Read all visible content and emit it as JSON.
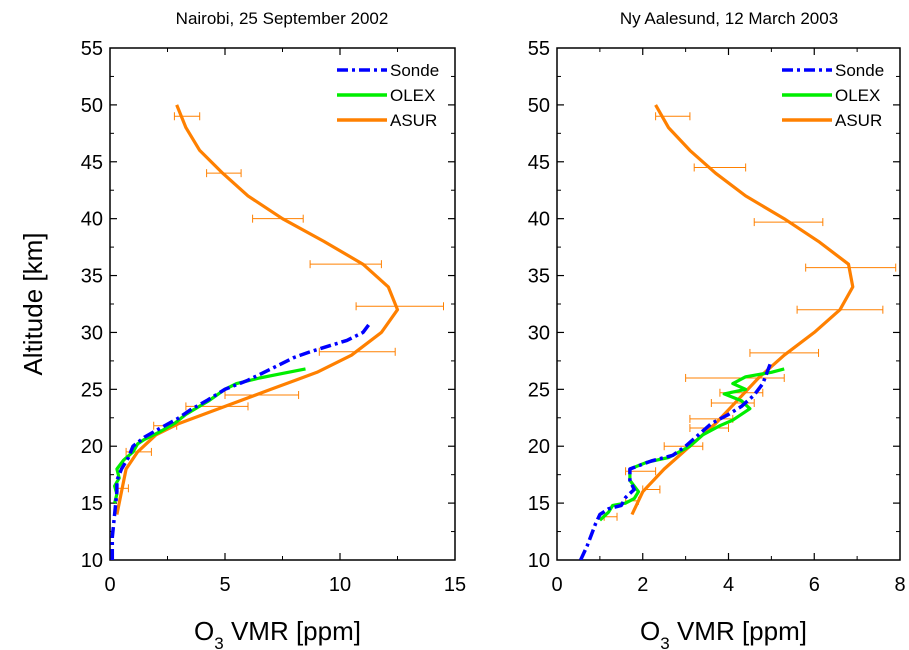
{
  "chart_data": [
    {
      "type": "line",
      "title": "Nairobi, 25 September 2002",
      "xlabel": "O",
      "xlabel_sub": "3",
      "xlabel_rest": " VMR  [ppm]",
      "ylabel": "Altitude  [km]",
      "xlim": [
        0,
        15
      ],
      "ylim": [
        10,
        55
      ],
      "xticks": [
        "0",
        "5",
        "10",
        "15"
      ],
      "yticks": [
        "10",
        "15",
        "20",
        "25",
        "30",
        "35",
        "40",
        "45",
        "50",
        "55"
      ],
      "legend_position": "top-right",
      "series": [
        {
          "name": "Sonde",
          "color": "#0000ff",
          "style": "dashdot",
          "points": [
            [
              0.1,
              10
            ],
            [
              0.1,
              12
            ],
            [
              0.2,
              14
            ],
            [
              0.3,
              16
            ],
            [
              0.3,
              17
            ],
            [
              0.5,
              18
            ],
            [
              0.8,
              19
            ],
            [
              1.0,
              20
            ],
            [
              1.5,
              20.8
            ],
            [
              2.2,
              21.6
            ],
            [
              3.0,
              22.5
            ],
            [
              3.5,
              23.2
            ],
            [
              4.2,
              24
            ],
            [
              5.0,
              25
            ],
            [
              6.0,
              25.8
            ],
            [
              7.0,
              26.8
            ],
            [
              8.0,
              27.8
            ],
            [
              8.7,
              28.3
            ],
            [
              9.5,
              28.8
            ],
            [
              10.3,
              29.3
            ],
            [
              11.0,
              30
            ],
            [
              11.3,
              30.8
            ]
          ]
        },
        {
          "name": "OLEX",
          "color": "#00ee00",
          "style": "solid",
          "points": [
            [
              0.2,
              15
            ],
            [
              0.3,
              15.8
            ],
            [
              0.2,
              16.5
            ],
            [
              0.4,
              17.2
            ],
            [
              0.3,
              18
            ],
            [
              0.6,
              18.8
            ],
            [
              1.0,
              19.5
            ],
            [
              1.2,
              20.2
            ],
            [
              1.5,
              20.6
            ],
            [
              2.2,
              21.3
            ],
            [
              2.8,
              22
            ],
            [
              3.3,
              22.8
            ],
            [
              3.8,
              23.4
            ],
            [
              4.3,
              24
            ],
            [
              5.0,
              25
            ],
            [
              5.5,
              25.5
            ],
            [
              6.5,
              26
            ],
            [
              7.5,
              26.4
            ],
            [
              8.5,
              26.8
            ]
          ]
        },
        {
          "name": "ASUR",
          "color": "#ff8000",
          "style": "solid",
          "points": [
            [
              0.3,
              14
            ],
            [
              0.5,
              16
            ],
            [
              0.7,
              18
            ],
            [
              1.2,
              19.5
            ],
            [
              2.0,
              21
            ],
            [
              3.0,
              22
            ],
            [
              5.0,
              23.5
            ],
            [
              7.0,
              25
            ],
            [
              9.0,
              26.5
            ],
            [
              10.5,
              28
            ],
            [
              11.8,
              30
            ],
            [
              12.5,
              32
            ],
            [
              12.1,
              34
            ],
            [
              11.0,
              36
            ],
            [
              9.3,
              38
            ],
            [
              7.5,
              40
            ],
            [
              6.0,
              42
            ],
            [
              4.9,
              44
            ],
            [
              3.9,
              46
            ],
            [
              3.3,
              48
            ],
            [
              2.9,
              50
            ]
          ]
        }
      ],
      "error_bars": [
        {
          "y": 49,
          "x_low": 2.8,
          "x_high": 3.9
        },
        {
          "y": 44,
          "x_low": 4.2,
          "x_high": 5.7
        },
        {
          "y": 40,
          "x_low": 6.2,
          "x_high": 8.4
        },
        {
          "y": 36,
          "x_low": 8.7,
          "x_high": 11.8
        },
        {
          "y": 32.3,
          "x_low": 10.7,
          "x_high": 14.5
        },
        {
          "y": 28.3,
          "x_low": 9.1,
          "x_high": 12.4
        },
        {
          "y": 24.5,
          "x_low": 5.0,
          "x_high": 8.2
        },
        {
          "y": 23.5,
          "x_low": 3.3,
          "x_high": 6.0
        },
        {
          "y": 21.8,
          "x_low": 1.9,
          "x_high": 2.9
        },
        {
          "y": 19.5,
          "x_low": 0.7,
          "x_high": 1.8
        },
        {
          "y": 16.3,
          "x_low": 0.3,
          "x_high": 0.8
        }
      ]
    },
    {
      "type": "line",
      "title": "Ny Aalesund, 12 March 2003",
      "xlabel": "O",
      "xlabel_sub": "3",
      "xlabel_rest": " VMR  [ppm]",
      "ylabel": "",
      "xlim": [
        0,
        8
      ],
      "ylim": [
        10,
        55
      ],
      "xticks": [
        "0",
        "2",
        "4",
        "6",
        "8"
      ],
      "yticks": [
        "10",
        "15",
        "20",
        "25",
        "30",
        "35",
        "40",
        "45",
        "50",
        "55"
      ],
      "legend_position": "top-right",
      "series": [
        {
          "name": "Sonde",
          "color": "#0000ff",
          "style": "dashdot",
          "points": [
            [
              0.55,
              10
            ],
            [
              0.7,
              11.2
            ],
            [
              0.8,
              12.2
            ],
            [
              0.9,
              13.2
            ],
            [
              1.0,
              14
            ],
            [
              1.2,
              14.5
            ],
            [
              1.5,
              14.8
            ],
            [
              1.6,
              15.5
            ],
            [
              1.8,
              16.2
            ],
            [
              1.7,
              17
            ],
            [
              1.7,
              18
            ],
            [
              2.2,
              18.7
            ],
            [
              2.7,
              19.2
            ],
            [
              3.0,
              20
            ],
            [
              3.3,
              21
            ],
            [
              3.6,
              22
            ],
            [
              4.0,
              22.8
            ],
            [
              4.3,
              23.5
            ],
            [
              4.6,
              24.5
            ],
            [
              4.8,
              25.5
            ],
            [
              4.9,
              26.5
            ],
            [
              5.0,
              27.5
            ]
          ]
        },
        {
          "name": "OLEX",
          "color": "#00ee00",
          "style": "solid",
          "points": [
            [
              1.0,
              13.5
            ],
            [
              1.2,
              14.2
            ],
            [
              1.3,
              14.8
            ],
            [
              1.6,
              15
            ],
            [
              1.8,
              15.4
            ],
            [
              1.9,
              16
            ],
            [
              1.7,
              17
            ],
            [
              1.7,
              18
            ],
            [
              2.1,
              18.6
            ],
            [
              2.6,
              19
            ],
            [
              3.1,
              20
            ],
            [
              3.4,
              21
            ],
            [
              3.8,
              21.8
            ],
            [
              4.1,
              22.3
            ],
            [
              4.5,
              23.3
            ],
            [
              4.3,
              24
            ],
            [
              3.9,
              24.6
            ],
            [
              4.4,
              25
            ],
            [
              4.1,
              25.5
            ],
            [
              4.4,
              26.1
            ],
            [
              5.0,
              26.5
            ],
            [
              5.3,
              26.8
            ]
          ]
        },
        {
          "name": "ASUR",
          "color": "#ff8000",
          "style": "solid",
          "points": [
            [
              1.75,
              14
            ],
            [
              2.0,
              16
            ],
            [
              2.5,
              18
            ],
            [
              3.1,
              20
            ],
            [
              3.7,
              22
            ],
            [
              4.2,
              24
            ],
            [
              4.7,
              26
            ],
            [
              5.3,
              28
            ],
            [
              6.0,
              30
            ],
            [
              6.6,
              32
            ],
            [
              6.9,
              34
            ],
            [
              6.8,
              36
            ],
            [
              6.1,
              38
            ],
            [
              5.3,
              40
            ],
            [
              4.4,
              42
            ],
            [
              3.7,
              44
            ],
            [
              3.1,
              46
            ],
            [
              2.6,
              48
            ],
            [
              2.3,
              50
            ]
          ]
        }
      ],
      "error_bars": [
        {
          "y": 49,
          "x_low": 2.3,
          "x_high": 3.1
        },
        {
          "y": 44.5,
          "x_low": 3.2,
          "x_high": 4.4
        },
        {
          "y": 39.7,
          "x_low": 4.6,
          "x_high": 6.2
        },
        {
          "y": 35.7,
          "x_low": 5.8,
          "x_high": 7.9
        },
        {
          "y": 32,
          "x_low": 5.6,
          "x_high": 7.6
        },
        {
          "y": 28.2,
          "x_low": 4.5,
          "x_high": 6.1
        },
        {
          "y": 26,
          "x_low": 3.0,
          "x_high": 5.3
        },
        {
          "y": 24.7,
          "x_low": 3.8,
          "x_high": 4.8
        },
        {
          "y": 23.8,
          "x_low": 3.6,
          "x_high": 4.6
        },
        {
          "y": 22.4,
          "x_low": 3.1,
          "x_high": 4.1
        },
        {
          "y": 21.6,
          "x_low": 3.1,
          "x_high": 4.0
        },
        {
          "y": 20,
          "x_low": 2.5,
          "x_high": 3.4
        },
        {
          "y": 17.8,
          "x_low": 1.6,
          "x_high": 2.3
        },
        {
          "y": 16.2,
          "x_low": 2.0,
          "x_high": 2.4
        },
        {
          "y": 15.2,
          "x_low": 1.6,
          "x_high": 1.9
        },
        {
          "y": 13.8,
          "x_low": 1.1,
          "x_high": 1.4
        }
      ]
    }
  ]
}
